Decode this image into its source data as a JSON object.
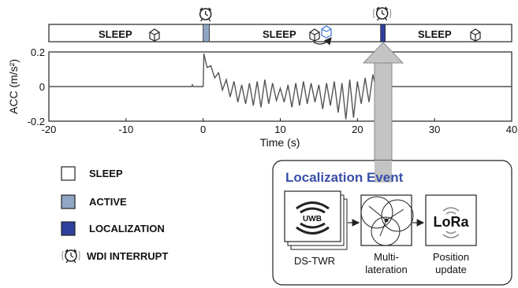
{
  "chart_data": {
    "type": "line",
    "xlabel": "Time (s)",
    "ylabel": "ACC (m/s²)",
    "xlim": [
      -20,
      40
    ],
    "ylim": [
      -0.2,
      0.2
    ],
    "xticks": [
      -20,
      -10,
      0,
      10,
      20,
      30,
      40
    ],
    "yticks": [
      -0.2,
      0,
      0.2
    ],
    "xtick_labels": [
      "-20",
      "-10",
      "0",
      "10",
      "20",
      "30",
      "40"
    ],
    "ytick_labels": [
      "-0.2",
      "0",
      "0.2"
    ],
    "grid": false,
    "series": [
      {
        "x": [
          -20,
          -15,
          -10,
          -5,
          -1.5,
          -1.4,
          -1.3,
          0,
          0.1,
          0.5,
          1,
          1.5,
          2,
          2.5,
          3,
          3.5,
          4,
          4.5,
          5,
          5.5,
          6,
          6.5,
          7,
          7.5,
          8,
          8.5,
          9,
          9.5,
          10,
          10.5,
          11,
          11.5,
          12,
          12.5,
          13,
          13.5,
          14,
          14.5,
          15,
          15.5,
          16,
          16.5,
          17,
          17.5,
          18,
          18.5,
          19,
          19.5,
          20,
          20.5,
          21,
          21.5,
          22,
          22.5,
          23,
          23.3,
          24,
          25,
          30,
          35,
          40
        ],
        "y": [
          0.0,
          0.0,
          0.0,
          0.0,
          0.0,
          0.01,
          0.0,
          0.0,
          0.19,
          0.11,
          0.12,
          0.05,
          0.08,
          -0.02,
          0.04,
          -0.06,
          0.03,
          -0.09,
          0.01,
          -0.1,
          0.02,
          -0.11,
          0.03,
          -0.12,
          0.04,
          -0.1,
          0.02,
          -0.08,
          -0.01,
          -0.09,
          0.01,
          -0.12,
          0.02,
          -0.11,
          0.03,
          -0.1,
          0.02,
          -0.09,
          0.01,
          -0.13,
          0.02,
          -0.11,
          0.03,
          -0.15,
          0.02,
          -0.19,
          0.04,
          -0.18,
          0.03,
          -0.1,
          0.05,
          -0.09,
          0.07,
          -0.03,
          0.12,
          0.03,
          0.0,
          0.0,
          0.0,
          0.0,
          0.0
        ]
      }
    ]
  },
  "timeline": {
    "states": [
      {
        "label": "SLEEP",
        "from": -20,
        "to": 0
      },
      {
        "label": "ACTIVE",
        "from": 0,
        "to": 0.8
      },
      {
        "label": "SLEEP",
        "from": 0.8,
        "to": 23
      },
      {
        "label": "LOCALIZATION",
        "from": 23,
        "to": 23.6
      },
      {
        "label": "SLEEP",
        "from": 23.6,
        "to": 40
      }
    ],
    "interrupt_icon": "alarm-clock-icon",
    "sleep_icon": "box-icon",
    "labels": [
      "SLEEP",
      "SLEEP",
      "SLEEP"
    ]
  },
  "legend": {
    "items": [
      {
        "label": "SLEEP",
        "color": "#ffffff"
      },
      {
        "label": "ACTIVE",
        "color": "#8fa6c4"
      },
      {
        "label": "LOCALIZATION",
        "color": "#2f3f9e"
      },
      {
        "label": "WDI INTERRUPT",
        "icon": "alarm-clock-icon"
      }
    ]
  },
  "localization_event": {
    "title": "Localization Event",
    "title_color": "#3a4fa8",
    "steps": [
      {
        "icon": "uwb-icon",
        "icon_text": "UWB",
        "label": "DS-TWR"
      },
      {
        "icon": "multilateration-icon",
        "label_lines": [
          "Multi-",
          "lateration"
        ]
      },
      {
        "icon": "lora-icon",
        "icon_text": "LoRa",
        "label_lines": [
          "Position",
          "update"
        ]
      }
    ]
  }
}
